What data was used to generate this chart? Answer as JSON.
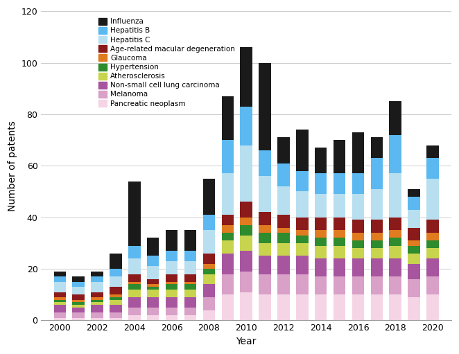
{
  "years": [
    2000,
    2001,
    2002,
    2003,
    2004,
    2005,
    2006,
    2007,
    2008,
    2009,
    2010,
    2011,
    2012,
    2013,
    2014,
    2015,
    2016,
    2017,
    2018,
    2019,
    2020
  ],
  "stack_order": [
    "Pancreatic neoplasm",
    "Melanoma",
    "Non-small cell lung carcinoma",
    "Atherosclerosis",
    "Hypertension",
    "Glaucoma",
    "Age-related macular degeneration",
    "Hepatitis C",
    "Hepatitis B",
    "Influenza"
  ],
  "series": {
    "Pancreatic neoplasm": [
      1,
      1,
      1,
      1,
      2,
      2,
      2,
      2,
      4,
      10,
      11,
      10,
      10,
      10,
      10,
      10,
      10,
      10,
      10,
      9,
      10
    ],
    "Melanoma": [
      2,
      2,
      2,
      2,
      3,
      3,
      3,
      3,
      5,
      8,
      8,
      8,
      8,
      8,
      7,
      7,
      7,
      7,
      7,
      7,
      7
    ],
    "Non-small cell lung carcinoma": [
      3,
      2,
      3,
      3,
      4,
      4,
      4,
      4,
      5,
      8,
      8,
      7,
      7,
      7,
      7,
      7,
      7,
      7,
      7,
      6,
      7
    ],
    "Atherosclerosis": [
      1,
      1,
      1,
      2,
      3,
      3,
      3,
      3,
      4,
      5,
      6,
      5,
      5,
      5,
      5,
      5,
      4,
      4,
      5,
      4,
      4
    ],
    "Hypertension": [
      1,
      1,
      1,
      1,
      2,
      1,
      2,
      2,
      2,
      3,
      4,
      4,
      4,
      3,
      3,
      3,
      3,
      3,
      3,
      3,
      3
    ],
    "Glaucoma": [
      1,
      1,
      1,
      1,
      1,
      1,
      1,
      1,
      2,
      3,
      3,
      3,
      2,
      2,
      3,
      3,
      3,
      3,
      3,
      2,
      3
    ],
    "Age-related macular degeneration": [
      2,
      2,
      2,
      3,
      3,
      2,
      3,
      3,
      4,
      4,
      6,
      5,
      5,
      5,
      5,
      5,
      5,
      5,
      5,
      5,
      5
    ],
    "Hepatitis C": [
      4,
      3,
      4,
      4,
      6,
      5,
      5,
      5,
      9,
      16,
      22,
      14,
      11,
      10,
      9,
      9,
      10,
      12,
      17,
      7,
      16
    ],
    "Hepatitis B": [
      2,
      2,
      2,
      3,
      5,
      4,
      4,
      4,
      6,
      13,
      15,
      10,
      9,
      8,
      8,
      8,
      8,
      12,
      15,
      5,
      8
    ],
    "Influenza": [
      2,
      2,
      2,
      6,
      25,
      7,
      8,
      8,
      14,
      17,
      23,
      34,
      10,
      16,
      10,
      13,
      16,
      8,
      13,
      3,
      5
    ]
  },
  "colors": {
    "Influenza": "#1a1a1a",
    "Hepatitis B": "#5bb8f0",
    "Hepatitis C": "#b8dff0",
    "Age-related macular degeneration": "#8b1a1a",
    "Glaucoma": "#e07b20",
    "Hypertension": "#2e8b2e",
    "Atherosclerosis": "#c8d44e",
    "Non-small cell lung carcinoma": "#a855a0",
    "Melanoma": "#d9a0c8",
    "Pancreatic neoplasm": "#f5d5e5"
  },
  "legend_order": [
    "Influenza",
    "Hepatitis B",
    "Hepatitis C",
    "Age-related macular degeneration",
    "Glaucoma",
    "Hypertension",
    "Atherosclerosis",
    "Non-small cell lung carcinoma",
    "Melanoma",
    "Pancreatic neoplasm"
  ],
  "ylabel": "Number of patents",
  "xlabel": "Year",
  "ylim": [
    0,
    120
  ],
  "yticks": [
    0,
    20,
    40,
    60,
    80,
    100,
    120
  ],
  "figsize": [
    6.62,
    5.11
  ],
  "dpi": 100
}
